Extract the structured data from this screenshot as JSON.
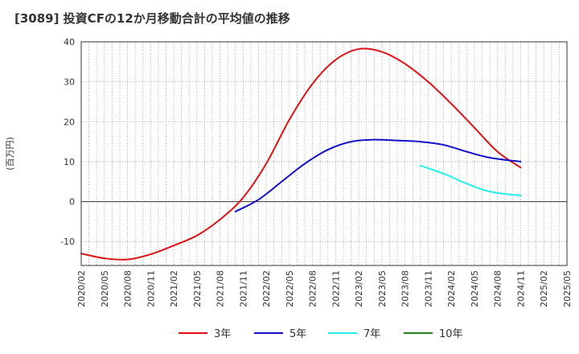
{
  "chart_data": {
    "type": "line",
    "title": "[3089]  投資CFの12か月移動合計の平均値の推移",
    "ylabel": "(百万円)",
    "ylim": [
      -16,
      40
    ],
    "yticks": [
      -10,
      0,
      10,
      20,
      30,
      40
    ],
    "xlim": [
      "2020-02",
      "2025-05"
    ],
    "xticks": [
      "2020/02",
      "2020/05",
      "2020/08",
      "2020/11",
      "2021/02",
      "2021/05",
      "2021/08",
      "2021/11",
      "2022/02",
      "2022/05",
      "2022/08",
      "2022/11",
      "2023/02",
      "2023/05",
      "2023/08",
      "2023/11",
      "2024/02",
      "2024/05",
      "2024/08",
      "2024/11",
      "2025/02",
      "2025/05"
    ],
    "grid": true,
    "legend_position": "bottom",
    "series": [
      {
        "name": "3年",
        "color": "#dd1111",
        "points": [
          [
            "2020-02",
            -13.0
          ],
          [
            "2020-05",
            -14.2
          ],
          [
            "2020-08",
            -14.5
          ],
          [
            "2020-11",
            -13.2
          ],
          [
            "2021-02",
            -11.0
          ],
          [
            "2021-05",
            -8.5
          ],
          [
            "2021-08",
            -4.5
          ],
          [
            "2021-11",
            1.0
          ],
          [
            "2022-02",
            9.5
          ],
          [
            "2022-05",
            20.5
          ],
          [
            "2022-08",
            29.5
          ],
          [
            "2022-11",
            35.5
          ],
          [
            "2023-02",
            38.2
          ],
          [
            "2023-05",
            37.5
          ],
          [
            "2023-08",
            34.5
          ],
          [
            "2023-11",
            30.0
          ],
          [
            "2024-02",
            24.5
          ],
          [
            "2024-05",
            18.5
          ],
          [
            "2024-08",
            12.5
          ],
          [
            "2024-11",
            8.5
          ]
        ]
      },
      {
        "name": "5年",
        "color": "#1111cc",
        "points": [
          [
            "2021-10",
            -2.5
          ],
          [
            "2022-01",
            0.5
          ],
          [
            "2022-04",
            5.0
          ],
          [
            "2022-07",
            9.5
          ],
          [
            "2022-10",
            13.0
          ],
          [
            "2023-01",
            15.0
          ],
          [
            "2023-04",
            15.5
          ],
          [
            "2023-07",
            15.3
          ],
          [
            "2023-10",
            15.0
          ],
          [
            "2024-01",
            14.2
          ],
          [
            "2024-04",
            12.5
          ],
          [
            "2024-07",
            11.0
          ],
          [
            "2024-11",
            10.0
          ]
        ]
      },
      {
        "name": "7年",
        "color": "#22eeee",
        "points": [
          [
            "2023-10",
            9.0
          ],
          [
            "2024-01",
            7.0
          ],
          [
            "2024-04",
            4.5
          ],
          [
            "2024-07",
            2.5
          ],
          [
            "2024-11",
            1.5
          ]
        ]
      },
      {
        "name": "10年",
        "color": "#228822",
        "points": []
      }
    ]
  }
}
